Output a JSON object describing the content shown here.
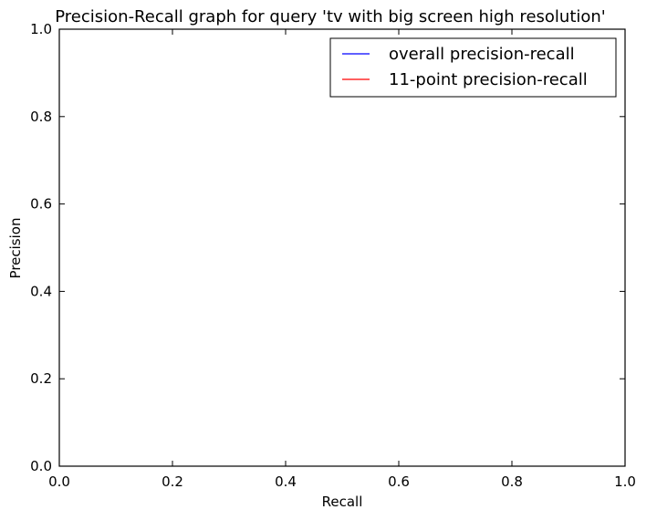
{
  "chart_data": {
    "type": "line",
    "title": "Precision-Recall graph for query 'tv with big screen high resolution'",
    "xlabel": "Recall",
    "ylabel": "Precision",
    "xlim": [
      0.0,
      1.0
    ],
    "ylim": [
      0.0,
      1.0
    ],
    "x_ticks": [
      "0.0",
      "0.2",
      "0.4",
      "0.6",
      "0.8",
      "1.0"
    ],
    "y_ticks": [
      "0.0",
      "0.2",
      "0.4",
      "0.6",
      "0.8",
      "1.0"
    ],
    "grid": false,
    "legend_position": "top-right",
    "series": [
      {
        "name": "overall precision-recall",
        "color": "#0000ff",
        "x": [],
        "y": []
      },
      {
        "name": "11-point precision-recall",
        "color": "#ff0000",
        "x": [],
        "y": []
      }
    ]
  }
}
